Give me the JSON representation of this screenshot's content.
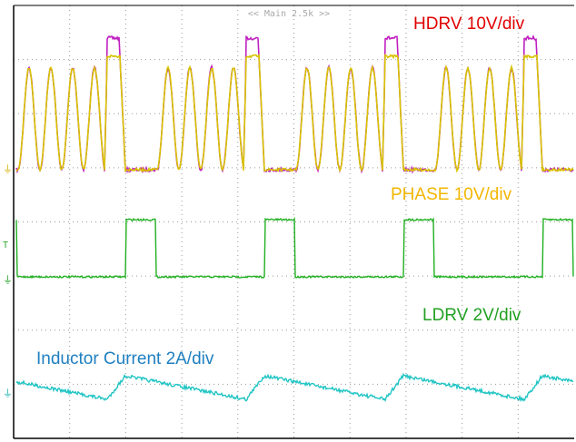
{
  "header": {
    "timebase": "<< Main 2.5k >>"
  },
  "traces": [
    {
      "label": "HDRV 10V/div"
    },
    {
      "label": "PHASE 10V/div"
    },
    {
      "label": "LDRV 2V/div"
    },
    {
      "label": "Inductor Current 2A/div"
    }
  ]
}
